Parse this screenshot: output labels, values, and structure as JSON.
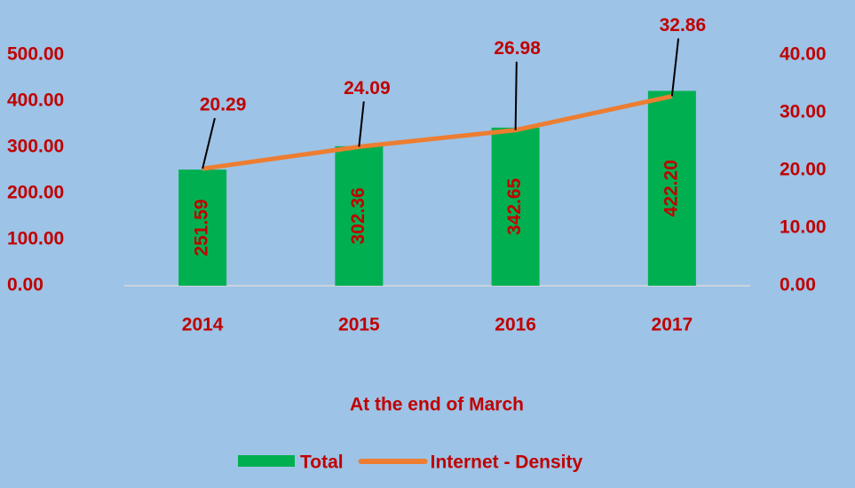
{
  "chart_data": {
    "type": "bar",
    "x_label": "At the end of March",
    "categories": [
      "2014",
      "2015",
      "2016",
      "2017"
    ],
    "series": [
      {
        "name": "Total",
        "type": "bar",
        "color": "#00b050",
        "values": [
          251.59,
          302.36,
          342.65,
          422.2
        ],
        "value_labels": [
          "251.59",
          "302.36",
          "342.65",
          "422.20"
        ]
      },
      {
        "name": "Internet - Density",
        "type": "line",
        "axis": "y2",
        "color": "#ed7d31",
        "values": [
          20.29,
          24.09,
          26.98,
          32.86
        ],
        "value_labels": [
          "20.29",
          "24.09",
          "26.98",
          "32.86"
        ]
      }
    ],
    "ylim": [
      0,
      500
    ],
    "yticks": [
      {
        "value": 0,
        "label": "0.00"
      },
      {
        "value": 100,
        "label": "100.00"
      },
      {
        "value": 200,
        "label": "200.00"
      },
      {
        "value": 300,
        "label": "300.00"
      },
      {
        "value": 400,
        "label": "400.00"
      },
      {
        "value": 500,
        "label": "500.00"
      }
    ],
    "y2lim": [
      0,
      40
    ],
    "y2ticks": [
      {
        "value": 0,
        "label": "0.00"
      },
      {
        "value": 10,
        "label": "10.00"
      },
      {
        "value": 20,
        "label": "20.00"
      },
      {
        "value": 30,
        "label": "30.00"
      },
      {
        "value": 40,
        "label": "40.00"
      }
    ],
    "grid": false,
    "legend": "bottom"
  }
}
